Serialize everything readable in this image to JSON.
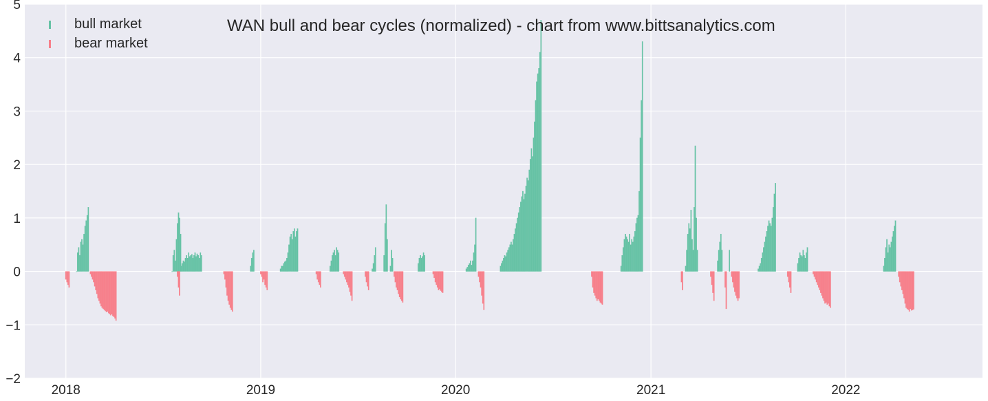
{
  "chart_data": {
    "type": "bar",
    "title": "WAN bull and bear cycles (normalized)  - chart from www.bittsanalytics.com",
    "xlabel": "",
    "ylabel": "",
    "ylim": [
      -2,
      5
    ],
    "xlim": [
      "2017-10-16",
      "2022-09-14"
    ],
    "grid": true,
    "legend_placement": "top-left",
    "y_ticks": [
      -2,
      -1,
      0,
      1,
      2,
      3,
      4,
      5
    ],
    "y_tick_labels": [
      "−2",
      "−1",
      "0",
      "1",
      "2",
      "3",
      "4",
      "5"
    ],
    "x_ticks": [
      {
        "date": "2018-01-01",
        "label": "2018"
      },
      {
        "date": "2019-01-01",
        "label": "2019"
      },
      {
        "date": "2020-01-01",
        "label": "2020"
      },
      {
        "date": "2021-01-01",
        "label": "2021"
      },
      {
        "date": "2022-01-01",
        "label": "2022"
      }
    ],
    "colors": {
      "bull": "#66c2a5",
      "bear": "#f77f8a",
      "plot_bg": "#eaeaf2",
      "grid": "#ffffff"
    },
    "series": [
      {
        "name": "bull market",
        "key": "bull",
        "segments": [
          [
            "2018-01-21",
            [
              0.0,
              0.35,
              0.45,
              0.3,
              0.55,
              0.6,
              0.5,
              0.7,
              0.85,
              0.95,
              1.05,
              1.2
            ]
          ],
          [
            "2018-07-19",
            [
              0.0,
              0.3,
              0.4,
              0.2,
              0.6,
              0.9,
              1.1,
              1.0,
              0.7
            ]
          ],
          [
            "2018-08-05",
            [
              0.1,
              0.15,
              0.2,
              0.18,
              0.25,
              0.3,
              0.25,
              0.35,
              0.28,
              0.3,
              0.32,
              0.25,
              0.3,
              0.35,
              0.28,
              0.33,
              0.3,
              0.25,
              0.35,
              0.3
            ]
          ],
          [
            "2018-12-13",
            [
              0.1,
              0.25,
              0.35,
              0.4
            ]
          ],
          [
            "2019-02-07",
            [
              0.05,
              0.1,
              0.1,
              0.15,
              0.18,
              0.2,
              0.25,
              0.35,
              0.5,
              0.65,
              0.7,
              0.6,
              0.75,
              0.8,
              0.65,
              0.75,
              0.8
            ]
          ],
          [
            "2019-05-11",
            [
              0.1,
              0.2,
              0.3,
              0.35,
              0.4,
              0.3,
              0.45,
              0.4,
              0.35
            ]
          ],
          [
            "2019-07-29",
            [
              0.05,
              0.15,
              0.3,
              0.45
            ]
          ],
          [
            "2019-08-20",
            [
              0.3,
              0.9,
              1.25,
              0.6
            ]
          ],
          [
            "2019-09-01",
            [
              0.1,
              0.4,
              0.25
            ]
          ],
          [
            "2019-10-23",
            [
              0.15,
              0.25,
              0.3,
              0.25,
              0.28,
              0.35,
              0.3
            ]
          ],
          [
            "2020-01-21",
            [
              0.05,
              0.08,
              0.12,
              0.15,
              0.2,
              0.12,
              0.2,
              0.35,
              0.5,
              1.0
            ]
          ],
          [
            "2020-03-25",
            [
              0.1,
              0.15,
              0.2,
              0.25,
              0.3,
              0.28,
              0.35,
              0.4,
              0.45,
              0.5,
              0.55,
              0.5,
              0.6,
              0.7,
              0.8,
              0.9,
              1.0,
              1.1,
              1.2,
              1.3,
              1.4,
              1.5,
              1.35,
              1.45,
              1.6,
              1.75,
              1.7,
              1.9,
              2.1,
              2.3,
              2.15,
              2.5,
              2.8,
              3.2,
              3.55,
              3.7,
              3.8,
              4.1,
              4.7
            ]
          ],
          [
            "2020-11-06",
            [
              0.1,
              0.3,
              0.45,
              0.6,
              0.7,
              0.65,
              0.6,
              0.55,
              0.7,
              0.5,
              0.6,
              0.55,
              0.65,
              0.75,
              0.9,
              1.0,
              1.05,
              1.5,
              2.5,
              3.2,
              4.3
            ]
          ],
          [
            "2021-03-07",
            [
              0.1,
              0.4,
              0.7,
              0.9,
              0.8,
              1.15,
              0.6,
              0.4,
              1.2,
              2.35,
              1.0,
              0.4
            ]
          ],
          [
            "2021-05-06",
            [
              0.2,
              0.4,
              0.55,
              0.7,
              0.4
            ]
          ],
          [
            "2021-05-28",
            [
              0.4
            ]
          ],
          [
            "2021-07-21",
            [
              0.05,
              0.1,
              0.15,
              0.25,
              0.35,
              0.45,
              0.55,
              0.65,
              0.75,
              0.85,
              0.95,
              0.9,
              0.85,
              1.0,
              1.2,
              1.45,
              1.65
            ]
          ],
          [
            "2021-10-03",
            [
              0.15,
              0.25,
              0.35,
              0.3,
              0.28,
              0.4,
              0.3,
              0.25,
              0.35,
              0.45
            ]
          ],
          [
            "2022-03-13",
            [
              0.1,
              0.25,
              0.45,
              0.6,
              0.35,
              0.5,
              0.45,
              0.55,
              0.65,
              0.75,
              0.85,
              0.95
            ]
          ]
        ]
      },
      {
        "name": "bear market",
        "key": "bear",
        "segments": [
          [
            "2018-01-01",
            [
              -0.15,
              -0.2,
              -0.25,
              -0.3
            ]
          ],
          [
            "2018-02-16",
            [
              -0.05,
              -0.1,
              -0.15,
              -0.2,
              -0.28,
              -0.35,
              -0.42,
              -0.5,
              -0.55,
              -0.6,
              -0.65,
              -0.68,
              -0.7,
              -0.72,
              -0.74,
              -0.76,
              -0.75,
              -0.78,
              -0.8,
              -0.82,
              -0.8,
              -0.83,
              -0.85,
              -0.88,
              -0.92
            ]
          ],
          [
            "2018-07-29",
            [
              -0.1,
              -0.3,
              -0.45
            ]
          ],
          [
            "2018-10-24",
            [
              -0.05,
              -0.15,
              -0.3,
              -0.45,
              -0.55,
              -0.62,
              -0.68,
              -0.72,
              -0.75
            ]
          ],
          [
            "2019-01-01",
            [
              -0.05,
              -0.1,
              -0.2,
              -0.15,
              -0.25,
              -0.3,
              -0.35
            ]
          ],
          [
            "2019-04-15",
            [
              -0.05,
              -0.15,
              -0.2,
              -0.25,
              -0.3
            ]
          ],
          [
            "2019-06-05",
            [
              -0.05,
              -0.1,
              -0.15,
              -0.2,
              -0.25,
              -0.3,
              -0.38,
              -0.45,
              -0.55
            ]
          ],
          [
            "2019-07-16",
            [
              -0.1,
              -0.2,
              -0.28,
              -0.35
            ]
          ],
          [
            "2019-09-08",
            [
              -0.1,
              -0.2,
              -0.3,
              -0.35,
              -0.42,
              -0.48,
              -0.52,
              -0.55,
              -0.58
            ]
          ],
          [
            "2019-11-20",
            [
              -0.05,
              -0.12,
              -0.2,
              -0.25,
              -0.3,
              -0.35,
              -0.33,
              -0.36,
              -0.38,
              -0.4
            ]
          ],
          [
            "2020-02-13",
            [
              -0.1,
              -0.2,
              -0.3,
              -0.45,
              -0.6,
              -0.72
            ]
          ],
          [
            "2020-09-12",
            [
              -0.1,
              -0.3,
              -0.4,
              -0.45,
              -0.5,
              -0.55,
              -0.52,
              -0.55,
              -0.58,
              -0.6,
              -0.62
            ]
          ],
          [
            "2021-02-27",
            [
              -0.2,
              -0.35
            ]
          ],
          [
            "2021-04-23",
            [
              -0.1,
              -0.25,
              -0.4,
              -0.55
            ]
          ],
          [
            "2021-05-20",
            [
              -0.3,
              -0.7
            ]
          ],
          [
            "2021-06-01",
            [
              -0.1,
              -0.2,
              -0.3,
              -0.38,
              -0.45,
              -0.5,
              -0.55,
              -0.5
            ]
          ],
          [
            "2021-09-14",
            [
              -0.1,
              -0.2,
              -0.3,
              -0.4
            ]
          ],
          [
            "2021-11-01",
            [
              -0.05,
              -0.1,
              -0.15,
              -0.2,
              -0.25,
              -0.3,
              -0.35,
              -0.4,
              -0.45,
              -0.5,
              -0.55,
              -0.6,
              -0.58,
              -0.62,
              -0.6,
              -0.65,
              -0.68
            ]
          ],
          [
            "2022-04-10",
            [
              -0.1,
              -0.2,
              -0.28,
              -0.35,
              -0.42,
              -0.5,
              -0.6,
              -0.68,
              -0.7,
              -0.72,
              -0.75,
              -0.7,
              -0.73,
              -0.72,
              -0.71
            ]
          ]
        ]
      }
    ]
  }
}
